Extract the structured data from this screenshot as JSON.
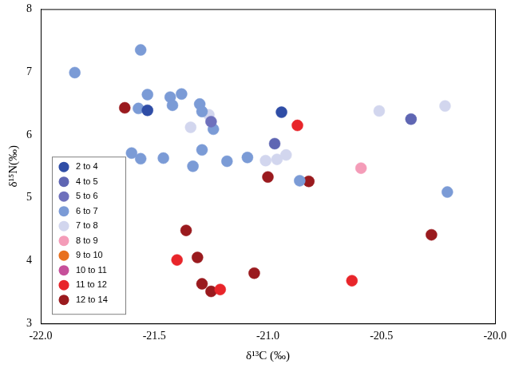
{
  "chart_data": {
    "type": "scatter",
    "x_label": "δ¹³C (‰)",
    "y_label": "δ¹⁵N(‰)",
    "xlim": [
      -22,
      -20
    ],
    "xticks": [
      {
        "value": -22,
        "label": "-22.0"
      },
      {
        "value": -21.5,
        "label": "-21.5"
      },
      {
        "value": -21,
        "label": "-21.0"
      },
      {
        "value": -20.5,
        "label": "-20.5"
      },
      {
        "value": -20,
        "label": "-20.0"
      }
    ],
    "ylim": [
      3,
      8
    ],
    "yticks": [
      3,
      4,
      5,
      6,
      7,
      8
    ],
    "grid": false,
    "legend": "lower left",
    "marker": "circle",
    "series": [
      {
        "name": "2 to 4",
        "color": "#2f4da6",
        "x": [
          -21.53,
          -20.94
        ],
        "y": [
          6.39,
          6.36
        ]
      },
      {
        "name": "4 to 5",
        "color": "#5f66b3",
        "x": [
          -20.97,
          -20.37
        ],
        "y": [
          5.86,
          6.25
        ]
      },
      {
        "name": "5 to 6",
        "color": "#6e70bc",
        "x": [
          -21.25
        ],
        "y": [
          6.21
        ]
      },
      {
        "name": "6 to 7",
        "color": "#7b9bd6",
        "x": [
          -21.85,
          -21.56,
          -21.53,
          -21.43,
          -21.38,
          -21.42,
          -21.57,
          -21.3,
          -21.29,
          -21.24,
          -21.6,
          -21.56,
          -21.46,
          -21.29,
          -21.33,
          -21.18,
          -21.09,
          -20.86,
          -20.21
        ],
        "y": [
          6.99,
          7.35,
          6.64,
          6.6,
          6.65,
          6.47,
          6.42,
          6.49,
          6.37,
          6.09,
          5.71,
          5.62,
          5.63,
          5.76,
          5.5,
          5.58,
          5.64,
          5.27,
          5.09
        ]
      },
      {
        "name": "7 to 8",
        "color": "#d2d6ee",
        "x": [
          -21.34,
          -21.26,
          -21.01,
          -20.96,
          -20.92,
          -20.51,
          -20.22
        ],
        "y": [
          6.12,
          6.32,
          5.59,
          5.61,
          5.68,
          6.38,
          6.46
        ]
      },
      {
        "name": "8 to 9",
        "color": "#f49cb8",
        "x": [
          -20.59
        ],
        "y": [
          5.47
        ]
      },
      {
        "name": "9 to 10",
        "color": "#e8701e",
        "x": [],
        "y": []
      },
      {
        "name": "10 to 11",
        "color": "#c6509a",
        "x": [],
        "y": []
      },
      {
        "name": "11 to 12",
        "color": "#e8252a",
        "x": [
          -20.87,
          -21.4,
          -21.21,
          -20.63
        ],
        "y": [
          6.15,
          4.01,
          3.54,
          3.68
        ]
      },
      {
        "name": "12 to 14",
        "color": "#9a1a1e",
        "x": [
          -21.63,
          -21.0,
          -20.82,
          -21.36,
          -21.31,
          -21.29,
          -21.25,
          -21.06,
          -20.28
        ],
        "y": [
          6.43,
          5.33,
          5.26,
          4.48,
          4.05,
          3.63,
          3.51,
          3.8,
          4.41
        ]
      }
    ]
  }
}
